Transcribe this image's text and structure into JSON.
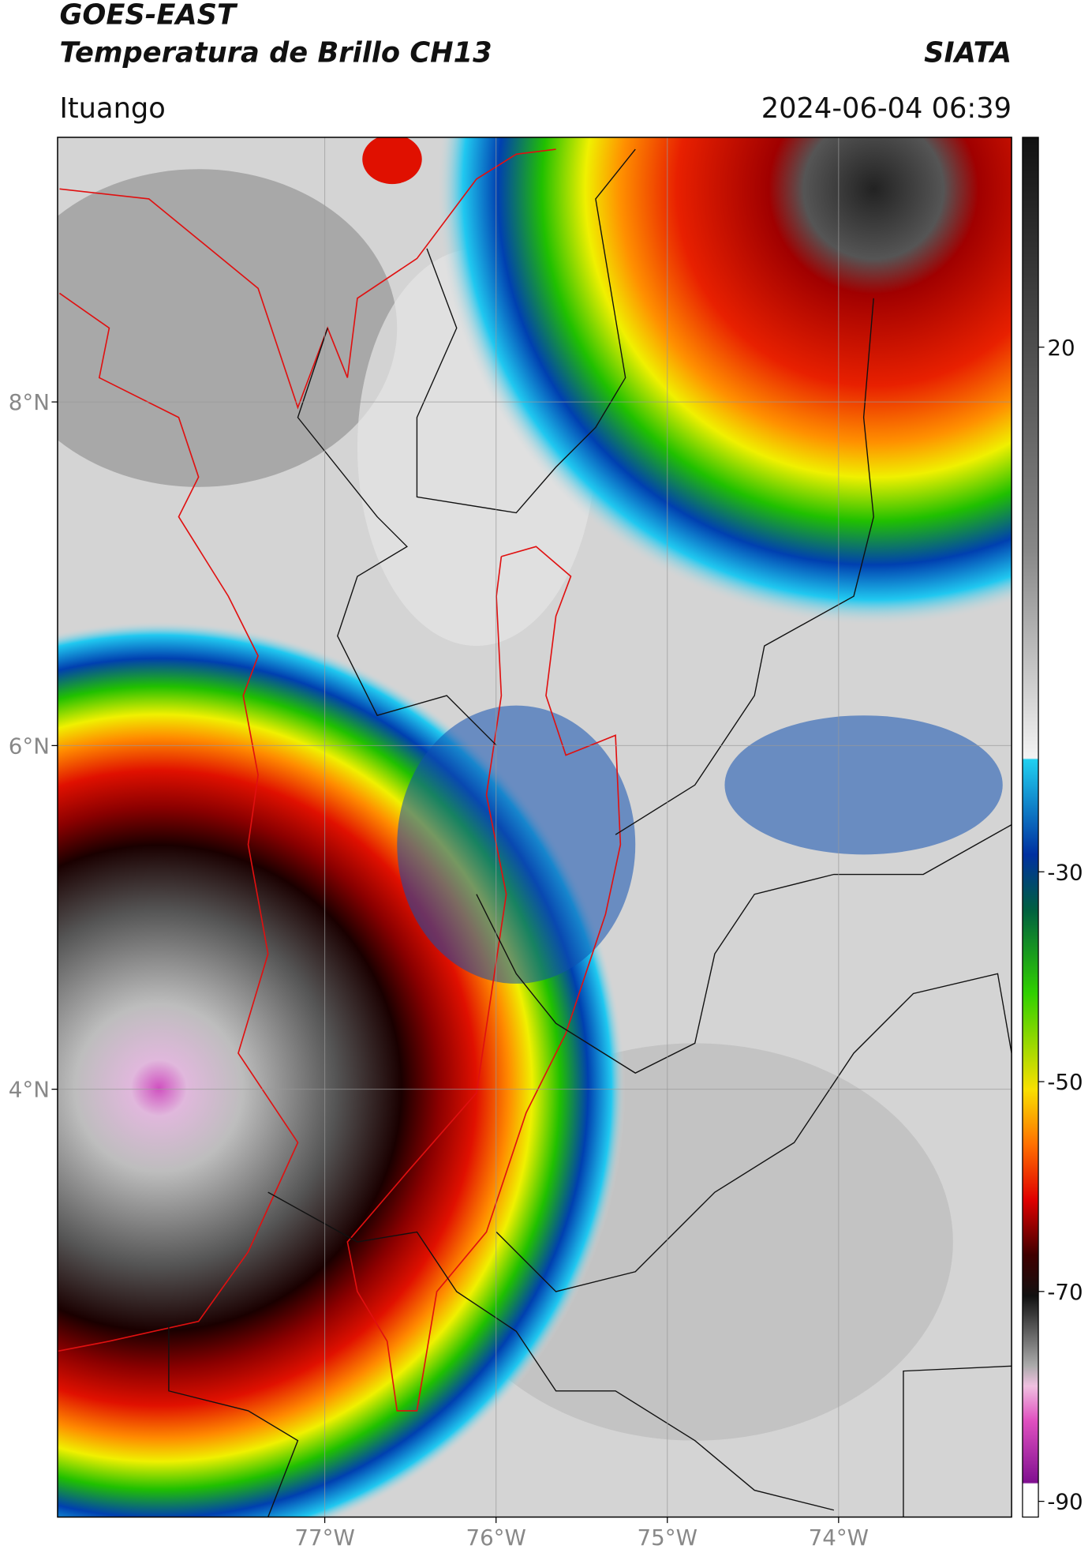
{
  "header": {
    "title_line1": "GOES-EAST",
    "title_line2": "Temperatura de Brillo CH13",
    "brand": "SIATA",
    "location": "Ituango",
    "datetime": "2024-06-04 06:39"
  },
  "map": {
    "xlim": [
      -78.56,
      -72.99
    ],
    "ylim": [
      1.51,
      9.54
    ],
    "xticks": [
      {
        "value": -77,
        "label": "77°W"
      },
      {
        "value": -76,
        "label": "76°W"
      },
      {
        "value": -75,
        "label": "75°W"
      },
      {
        "value": -74,
        "label": "74°W"
      }
    ],
    "yticks": [
      {
        "value": 8,
        "label": "8°N"
      },
      {
        "value": 6,
        "label": "6°N"
      },
      {
        "value": 4,
        "label": "4°N"
      }
    ],
    "grid": true,
    "colorbar": {
      "lim": [
        -91.5,
        40
      ],
      "ticks": [
        20,
        -30,
        -50,
        -70,
        -90
      ]
    }
  }
}
